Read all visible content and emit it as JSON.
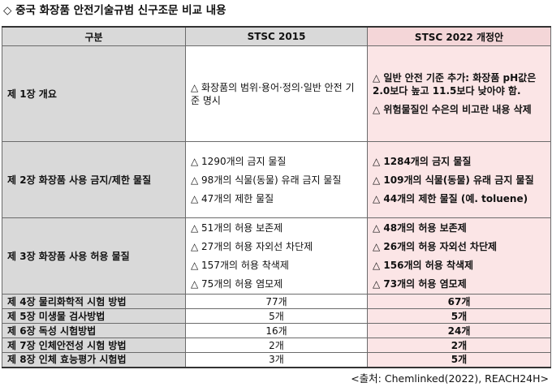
{
  "title": "◇ 중국 화장품 안전기술규범 신구조문 비교 내용",
  "header": {
    "category": "구분",
    "old": "STSC 2015",
    "new": "STSC 2022 개정안"
  },
  "rows": [
    {
      "category": "제 1장 개요",
      "old": [
        "△ 화장품의 범위·용어·정의·일반 안전 기준 명시"
      ],
      "new": [
        "△ 일반 안전 기준 추가: 화장품 pH값은 2.0보다 높고 11.5보다 낮아야 함.",
        "△ 위험물질인 수은의 비고란 내용 삭제"
      ]
    },
    {
      "category": "제 2장 화장품 사용 금지/제한 물질",
      "old": [
        "△ 1290개의 금지 물질",
        "△ 98개의 식물(동물) 유래 금지 물질",
        "△ 47개의 제한 물질"
      ],
      "new": [
        "△ 1284개의 금지 물질",
        "△ 109개의 식물(동물) 유래 금지 물질",
        "△ 44개의 제한 물질 (예. toluene)"
      ]
    },
    {
      "category": "제 3장 화장품 사용 허용 물질",
      "old": [
        "△ 51개의 허용 보존제",
        "△ 27개의 허용 자외선 차단제",
        "△ 157개의 허용 착색제",
        "△ 75개의 허용 염모제"
      ],
      "new": [
        "△ 48개의 허용 보존제",
        "△ 26개의 허용 자외선 차단제",
        "△ 156개의 허용 착색제",
        "△ 73개의 허용 염모제"
      ]
    },
    {
      "category": "제 4장 물리화학적 시험 방법",
      "old": "77개",
      "new": "67개"
    },
    {
      "category": "제 5장 미생물 검사방법",
      "old": "5개",
      "new": "5개"
    },
    {
      "category": "제 6장 독성 시험방법",
      "old": "16개",
      "new": "24개"
    },
    {
      "category": "제 7장 인체안전성 시험 방법",
      "old": "2개",
      "new": "2개"
    },
    {
      "category": "제 8장 인체 효능평가 시험법",
      "old": "3개",
      "new": "5개"
    }
  ],
  "source": "<출처: Chemlinked(2022), REACH24H>",
  "colors": {
    "header_gray": "#d9d9d9",
    "new_header_pink": "#f4d6d8",
    "new_cell_pink": "#fbe5e6"
  }
}
